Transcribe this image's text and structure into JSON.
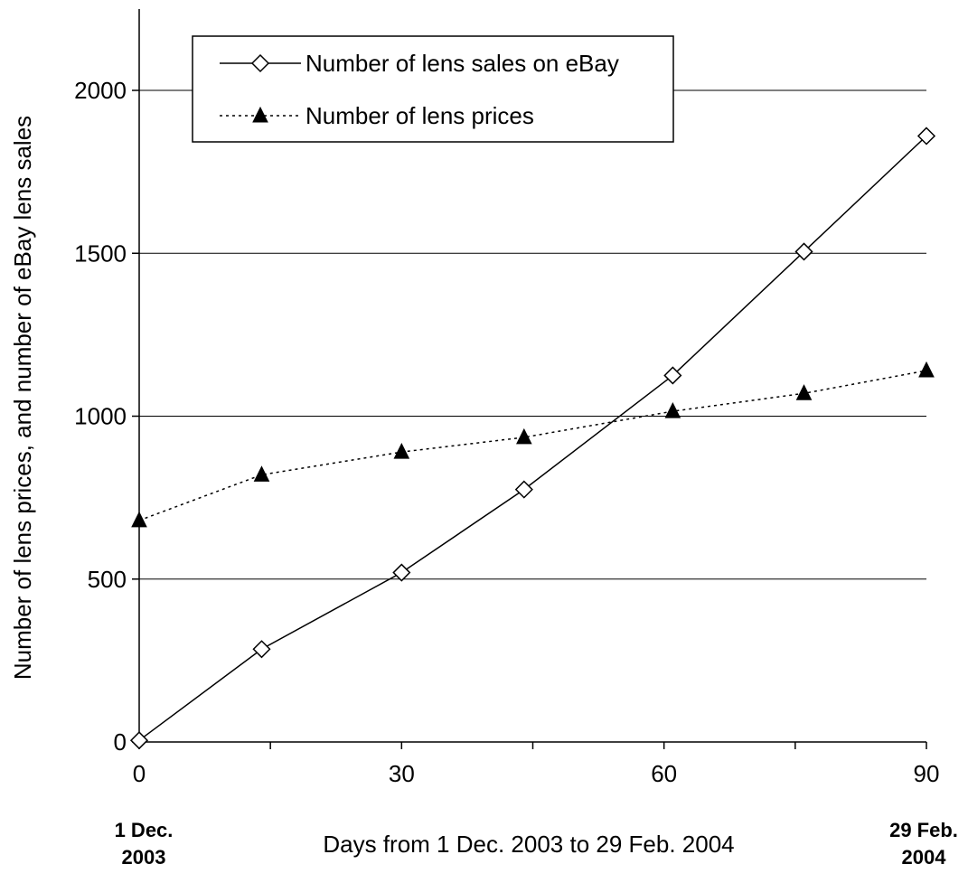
{
  "chart_data": {
    "type": "line",
    "xlabel": "Days from 1 Dec. 2003 to 29 Feb. 2004",
    "ylabel": "Number of lens prices, and number of eBay lens sales",
    "xlim": [
      0,
      90
    ],
    "ylim": [
      0,
      2000
    ],
    "x_ticks": [
      "0",
      "30",
      "60",
      "90"
    ],
    "y_ticks": [
      "0",
      "500",
      "1000",
      "1500",
      "2000"
    ],
    "date_labels": {
      "start": [
        "1 Dec.",
        "2003"
      ],
      "end": [
        "29 Feb.",
        "2004"
      ]
    },
    "grid": "horizontal",
    "legend_position": "top-left",
    "series": [
      {
        "name": "Number of lens sales on eBay",
        "marker": "open-diamond",
        "line_style": "solid",
        "color": "#000000",
        "points": [
          {
            "x": 0,
            "y": 5
          },
          {
            "x": 14,
            "y": 285
          },
          {
            "x": 30,
            "y": 520
          },
          {
            "x": 44,
            "y": 775
          },
          {
            "x": 61,
            "y": 1125
          },
          {
            "x": 76,
            "y": 1505
          },
          {
            "x": 90,
            "y": 1860
          }
        ]
      },
      {
        "name": "Number of lens prices",
        "marker": "filled-triangle",
        "line_style": "dotted",
        "color": "#000000",
        "points": [
          {
            "x": 0,
            "y": 680
          },
          {
            "x": 14,
            "y": 820
          },
          {
            "x": 30,
            "y": 890
          },
          {
            "x": 44,
            "y": 935
          },
          {
            "x": 61,
            "y": 1015
          },
          {
            "x": 76,
            "y": 1070
          },
          {
            "x": 90,
            "y": 1140
          }
        ]
      }
    ]
  }
}
